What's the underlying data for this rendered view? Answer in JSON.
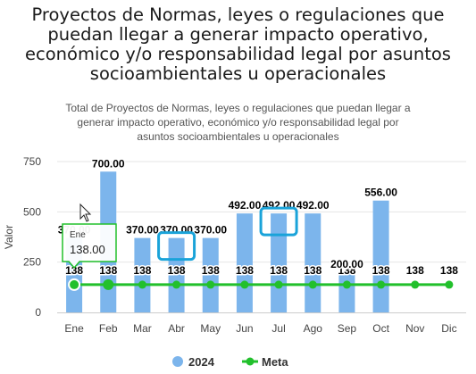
{
  "page": {
    "title": "Proyectos de Normas, leyes o regulaciones que\npuedan llegar a generar impacto operativo,\neconómico y/o responsabilidad legal por asuntos\nsocioambientales u operacionales"
  },
  "chart_data": {
    "type": "bar",
    "title": "",
    "subtitle": "Total de Proyectos de Normas, leyes o regulaciones que puedan llegar a\ngenerar impacto operativo, económico y/o responsabilidad legal por\nasuntos socioambientales u operacionales",
    "xlabel": "",
    "ylabel": "Valor",
    "ylim": [
      0,
      750
    ],
    "yticks": [
      0,
      250,
      500,
      750
    ],
    "grid": true,
    "legend_position": "bottom",
    "categories": [
      "Ene",
      "Feb",
      "Mar",
      "Abr",
      "May",
      "Jun",
      "Jul",
      "Ago",
      "Sep",
      "Oct",
      "Nov",
      "Dic"
    ],
    "series": [
      {
        "name": "2024",
        "type": "bar",
        "color": "#7cb5ec",
        "values": [
          370,
          700,
          370,
          370,
          370,
          492,
          492,
          492,
          200,
          556,
          null,
          null
        ],
        "labels": [
          "370.00",
          "700.00",
          "370.00",
          "370.00",
          "370.00",
          "492.00",
          "492.00",
          "492.00",
          "200.00",
          "556.00",
          "",
          ""
        ]
      },
      {
        "name": "Meta",
        "type": "line",
        "color": "#22c02c",
        "values": [
          138,
          138,
          138,
          138,
          138,
          138,
          138,
          138,
          138,
          138,
          138,
          138
        ],
        "labels": [
          "138",
          "138",
          "138",
          "138",
          "138",
          "138",
          "138",
          "138",
          "138",
          "138",
          "138",
          "138"
        ]
      }
    ],
    "tooltip": {
      "category": "Ene",
      "value": "138.00"
    },
    "highlights": [
      "Abr",
      "Jul"
    ]
  }
}
